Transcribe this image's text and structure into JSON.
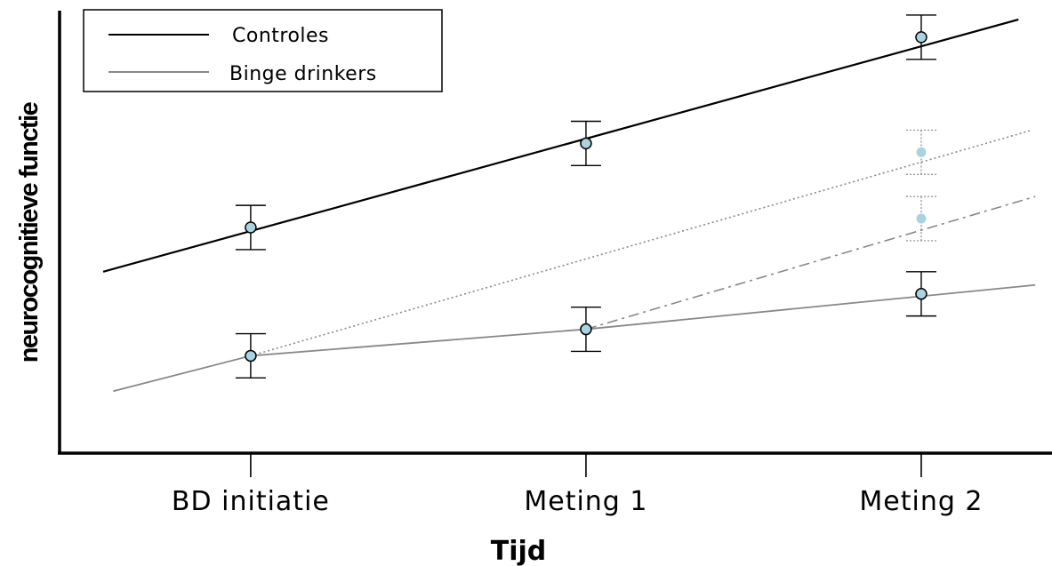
{
  "chart_data": {
    "type": "line",
    "xlabel": "Tijd",
    "ylabel": "neurocognitieve functie",
    "categories": [
      "BD initiatie",
      "Meting 1",
      "Meting 2"
    ],
    "x": [
      1,
      2,
      3
    ],
    "xlim": [
      0.43,
      3.39
    ],
    "ylim": [
      0,
      10
    ],
    "grid": false,
    "legend": {
      "placement": "top-left",
      "entries": [
        "Controles",
        "Binge drinkers"
      ]
    },
    "series": [
      {
        "name": "Controles",
        "color": "#000000",
        "line_style": "solid",
        "trend": [
          [
            0.56,
            4.1
          ],
          [
            3.29,
            9.8
          ]
        ],
        "points": [
          {
            "x": 1,
            "y": 5.1,
            "err": 0.5
          },
          {
            "x": 2,
            "y": 7.0,
            "err": 0.5
          },
          {
            "x": 3,
            "y": 9.4,
            "err": 0.5
          }
        ]
      },
      {
        "name": "Binge drinkers",
        "color": "#888888",
        "line_style": "solid",
        "trend": [
          [
            0.59,
            1.4
          ],
          [
            1,
            2.2
          ],
          [
            2,
            2.8
          ],
          [
            3.34,
            3.8
          ]
        ],
        "points": [
          {
            "x": 1,
            "y": 2.2,
            "err": 0.5
          },
          {
            "x": 2,
            "y": 2.8,
            "err": 0.5
          },
          {
            "x": 3,
            "y": 3.6,
            "err": 0.5
          }
        ]
      },
      {
        "color": "#888888",
        "line_style": "dotted",
        "trend": [
          [
            1,
            2.2
          ],
          [
            3.33,
            7.3
          ]
        ],
        "points": [
          {
            "x": 3,
            "y": 6.8,
            "err": 0.5
          }
        ]
      },
      {
        "color": "#888888",
        "line_style": "dashdot",
        "trend": [
          [
            2,
            2.8
          ],
          [
            3.34,
            5.8
          ]
        ],
        "points": [
          {
            "x": 3,
            "y": 5.3,
            "err": 0.5
          }
        ]
      }
    ],
    "marker_fill": "#a9d3de"
  }
}
